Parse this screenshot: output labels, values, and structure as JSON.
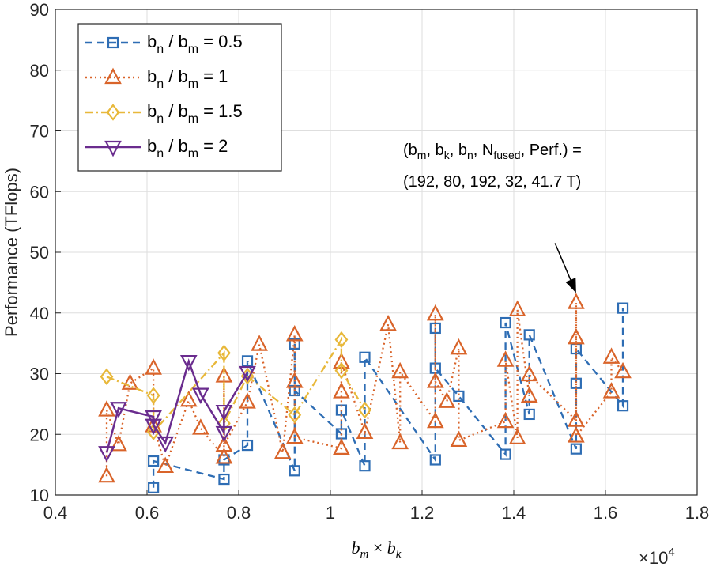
{
  "chart_data": {
    "type": "line",
    "xlim": [
      0.4,
      1.8
    ],
    "ylim": [
      10,
      90
    ],
    "xticks": [
      0.4,
      0.6,
      0.8,
      1.0,
      1.2,
      1.4,
      1.6,
      1.8
    ],
    "xtick_labels": [
      "0.4",
      "0.6",
      "0.8",
      "1",
      "1.2",
      "1.4",
      "1.6",
      "1.8"
    ],
    "yticks": [
      10,
      20,
      30,
      40,
      50,
      60,
      70,
      80,
      90
    ],
    "x_scale_exponent": "×10",
    "x_scale_power": "4",
    "xlabel": {
      "b": "b",
      "m": "m",
      "times": " × ",
      "b2": "b",
      "k": "k"
    },
    "ylabel": "Performance (TFlops)",
    "grid": true,
    "legend_position": "top-left",
    "series": [
      {
        "name": {
          "pre": "b",
          "sub1": "n",
          "mid": " / b",
          "sub2": "m",
          "post": " = 0.5"
        },
        "color": "#2e6db4",
        "marker": "square",
        "dash": "dash",
        "points": [
          [
            0.614,
            11.2
          ],
          [
            0.614,
            15.6
          ],
          [
            0.768,
            12.6
          ],
          [
            0.768,
            15.8
          ],
          [
            0.819,
            18.2
          ],
          [
            0.819,
            32.1
          ],
          [
            0.922,
            14.0
          ],
          [
            0.922,
            34.9
          ],
          [
            0.922,
            27.2
          ],
          [
            1.024,
            20.1
          ],
          [
            1.024,
            24.0
          ],
          [
            1.075,
            14.8
          ],
          [
            1.075,
            32.7
          ],
          [
            1.229,
            15.8
          ],
          [
            1.229,
            37.5
          ],
          [
            1.229,
            30.9
          ],
          [
            1.28,
            26.3
          ],
          [
            1.382,
            16.7
          ],
          [
            1.382,
            38.4
          ],
          [
            1.434,
            23.3
          ],
          [
            1.434,
            36.4
          ],
          [
            1.536,
            17.6
          ],
          [
            1.536,
            28.4
          ],
          [
            1.536,
            34.1
          ],
          [
            1.638,
            24.7
          ],
          [
            1.638,
            40.8
          ]
        ]
      },
      {
        "name": {
          "pre": "b",
          "sub1": "n",
          "mid": " / b",
          "sub2": "m",
          "post": " = 1"
        },
        "color": "#d9642a",
        "marker": "triangle-up",
        "dash": "dot",
        "points": [
          [
            0.512,
            13.1
          ],
          [
            0.512,
            24.0
          ],
          [
            0.538,
            18.3
          ],
          [
            0.563,
            28.4
          ],
          [
            0.614,
            30.9
          ],
          [
            0.614,
            21.4
          ],
          [
            0.64,
            14.7
          ],
          [
            0.691,
            25.6
          ],
          [
            0.717,
            21.0
          ],
          [
            0.768,
            16.2
          ],
          [
            0.768,
            29.6
          ],
          [
            0.768,
            18.2
          ],
          [
            0.819,
            25.3
          ],
          [
            0.845,
            34.8
          ],
          [
            0.896,
            17.0
          ],
          [
            0.922,
            36.4
          ],
          [
            0.922,
            28.7
          ],
          [
            0.922,
            19.5
          ],
          [
            1.024,
            17.7
          ],
          [
            1.024,
            27.0
          ],
          [
            1.024,
            31.9
          ],
          [
            1.075,
            20.3
          ],
          [
            1.126,
            38.1
          ],
          [
            1.152,
            18.6
          ],
          [
            1.152,
            30.3
          ],
          [
            1.229,
            22.1
          ],
          [
            1.229,
            39.8
          ],
          [
            1.229,
            28.7
          ],
          [
            1.254,
            25.4
          ],
          [
            1.28,
            34.2
          ],
          [
            1.28,
            19.0
          ],
          [
            1.382,
            22.1
          ],
          [
            1.382,
            32.2
          ],
          [
            1.408,
            19.4
          ],
          [
            1.408,
            40.5
          ],
          [
            1.434,
            26.3
          ],
          [
            1.434,
            29.8
          ],
          [
            1.536,
            22.3
          ],
          [
            1.536,
            41.7
          ],
          [
            1.536,
            35.9
          ],
          [
            1.536,
            19.7
          ],
          [
            1.613,
            27.0
          ],
          [
            1.613,
            32.7
          ],
          [
            1.638,
            30.3
          ]
        ]
      },
      {
        "name": {
          "pre": "b",
          "sub1": "n",
          "mid": " / b",
          "sub2": "m",
          "post": " = 1.5"
        },
        "color": "#e8b83a",
        "marker": "diamond",
        "dash": "dashdot",
        "points": [
          [
            0.512,
            29.5
          ],
          [
            0.614,
            26.4
          ],
          [
            0.614,
            20.4
          ],
          [
            0.768,
            33.4
          ],
          [
            0.768,
            21.8
          ],
          [
            0.819,
            29.6
          ],
          [
            0.922,
            23.2
          ],
          [
            1.024,
            35.6
          ],
          [
            1.024,
            30.5
          ],
          [
            1.075,
            24.0
          ]
        ]
      },
      {
        "name": {
          "pre": "b",
          "sub1": "n",
          "mid": " / b",
          "sub2": "m",
          "post": " = 2"
        },
        "color": "#6a2c8e",
        "marker": "triangle-down",
        "dash": "solid",
        "points": [
          [
            0.512,
            17.0
          ],
          [
            0.538,
            24.3
          ],
          [
            0.614,
            22.9
          ],
          [
            0.614,
            21.5
          ],
          [
            0.64,
            18.6
          ],
          [
            0.691,
            32.0
          ],
          [
            0.717,
            26.6
          ],
          [
            0.768,
            20.3
          ],
          [
            0.768,
            23.8
          ],
          [
            0.819,
            30.2
          ]
        ]
      }
    ],
    "annotation": {
      "line1": {
        "p1": "(b",
        "s1": "m",
        "p2": ", b",
        "s2": "k",
        "p3": ", b",
        "s3": "n",
        "p4": ", N",
        "s4": "fused",
        "p5": ", Perf.) ="
      },
      "line2": "(192, 80, 192, 32, 41.7 T)",
      "target": [
        1.536,
        43.3
      ],
      "from": [
        1.49,
        51.5
      ]
    }
  }
}
